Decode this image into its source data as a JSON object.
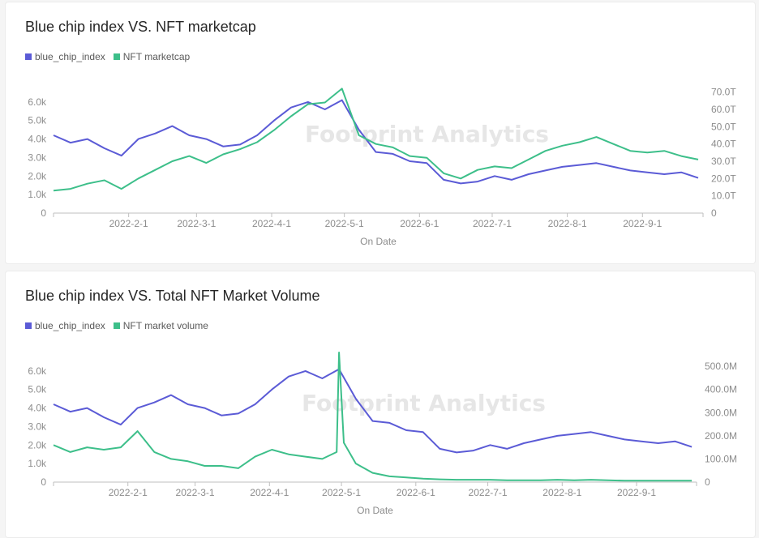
{
  "colors": {
    "blue": "#5b5bd6",
    "green": "#3dbf8a",
    "axis": "#8c8c8c",
    "watermark": "#e6e6e6"
  },
  "watermark": "Footprint Analytics",
  "chart_data": [
    {
      "type": "line",
      "title": "Blue chip index VS. NFT marketcap",
      "xlabel": "On Date",
      "x_tick_labels": [
        "2022-2-1",
        "2022-3-1",
        "2022-4-1",
        "2022-5-1",
        "2022-6-1",
        "2022-7-1",
        "2022-8-1",
        "2022-9-1"
      ],
      "x_range": [
        "2022-1-1",
        "2022-9-26"
      ],
      "y_left": {
        "ticks": [
          "0",
          "1.0k",
          "2.0k",
          "3.0k",
          "4.0k",
          "5.0k",
          "6.0k"
        ],
        "ylim": [
          0,
          7000
        ]
      },
      "y_right": {
        "ticks": [
          "0",
          "10.0T",
          "20.0T",
          "30.0T",
          "40.0T",
          "50.0T",
          "60.0T",
          "70.0T"
        ],
        "ylim": [
          0,
          75
        ]
      },
      "legend_position": "top-left",
      "series": [
        {
          "name": "blue_chip_index",
          "axis": "left",
          "x": [
            "2022-1-1",
            "2022-1-8",
            "2022-1-15",
            "2022-1-22",
            "2022-1-29",
            "2022-2-5",
            "2022-2-12",
            "2022-2-19",
            "2022-2-26",
            "2022-3-5",
            "2022-3-12",
            "2022-3-19",
            "2022-3-26",
            "2022-4-2",
            "2022-4-9",
            "2022-4-16",
            "2022-4-23",
            "2022-4-30",
            "2022-5-7",
            "2022-5-14",
            "2022-5-21",
            "2022-5-28",
            "2022-6-4",
            "2022-6-11",
            "2022-6-18",
            "2022-6-25",
            "2022-7-2",
            "2022-7-9",
            "2022-7-16",
            "2022-7-23",
            "2022-7-30",
            "2022-8-6",
            "2022-8-13",
            "2022-8-20",
            "2022-8-27",
            "2022-9-3",
            "2022-9-10",
            "2022-9-17",
            "2022-9-24"
          ],
          "values": [
            4200,
            3800,
            4000,
            3500,
            3100,
            4000,
            4300,
            4700,
            4200,
            4000,
            3600,
            3700,
            4200,
            5000,
            5700,
            6000,
            5600,
            6100,
            4500,
            3300,
            3200,
            2800,
            2700,
            1800,
            1600,
            1700,
            2000,
            1800,
            2100,
            2300,
            2500,
            2600,
            2700,
            2500,
            2300,
            2200,
            2100,
            2200,
            1900
          ]
        },
        {
          "name": "NFT marketcap",
          "axis": "right",
          "x": [
            "2022-1-1",
            "2022-1-8",
            "2022-1-15",
            "2022-1-22",
            "2022-1-29",
            "2022-2-5",
            "2022-2-12",
            "2022-2-19",
            "2022-2-26",
            "2022-3-5",
            "2022-3-12",
            "2022-3-19",
            "2022-3-26",
            "2022-4-2",
            "2022-4-9",
            "2022-4-16",
            "2022-4-23",
            "2022-4-30",
            "2022-5-7",
            "2022-5-14",
            "2022-5-21",
            "2022-5-28",
            "2022-6-4",
            "2022-6-11",
            "2022-6-18",
            "2022-6-25",
            "2022-7-2",
            "2022-7-9",
            "2022-7-16",
            "2022-7-23",
            "2022-7-30",
            "2022-8-6",
            "2022-8-13",
            "2022-8-20",
            "2022-8-27",
            "2022-9-3",
            "2022-9-10",
            "2022-9-17",
            "2022-9-24"
          ],
          "values": [
            13,
            14,
            17,
            19,
            14,
            20,
            25,
            30,
            33,
            29,
            34,
            37,
            41,
            48,
            56,
            63,
            64,
            72,
            45,
            40,
            38,
            33,
            32,
            23,
            20,
            25,
            27,
            26,
            31,
            36,
            39,
            41,
            44,
            40,
            36,
            35,
            36,
            33,
            31
          ]
        }
      ]
    },
    {
      "type": "line",
      "title": "Blue chip index VS. Total NFT Market Volume",
      "xlabel": "On Date",
      "x_tick_labels": [
        "2022-2-1",
        "2022-3-1",
        "2022-4-1",
        "2022-5-1",
        "2022-6-1",
        "2022-7-1",
        "2022-8-1",
        "2022-9-1"
      ],
      "x_range": [
        "2022-1-1",
        "2022-9-26"
      ],
      "y_left": {
        "ticks": [
          "0",
          "1.0k",
          "2.0k",
          "3.0k",
          "4.0k",
          "5.0k",
          "6.0k"
        ],
        "ylim": [
          0,
          7000
        ]
      },
      "y_right": {
        "ticks": [
          "0",
          "100.0M",
          "200.0M",
          "300.0M",
          "400.0M",
          "500.0M"
        ],
        "ylim": [
          0,
          560
        ]
      },
      "legend_position": "top-left",
      "series": [
        {
          "name": "blue_chip_index",
          "axis": "left",
          "x": [
            "2022-1-1",
            "2022-1-8",
            "2022-1-15",
            "2022-1-22",
            "2022-1-29",
            "2022-2-5",
            "2022-2-12",
            "2022-2-19",
            "2022-2-26",
            "2022-3-5",
            "2022-3-12",
            "2022-3-19",
            "2022-3-26",
            "2022-4-2",
            "2022-4-9",
            "2022-4-16",
            "2022-4-23",
            "2022-4-30",
            "2022-5-7",
            "2022-5-14",
            "2022-5-21",
            "2022-5-28",
            "2022-6-4",
            "2022-6-11",
            "2022-6-18",
            "2022-6-25",
            "2022-7-2",
            "2022-7-9",
            "2022-7-16",
            "2022-7-23",
            "2022-7-30",
            "2022-8-6",
            "2022-8-13",
            "2022-8-20",
            "2022-8-27",
            "2022-9-3",
            "2022-9-10",
            "2022-9-17",
            "2022-9-24"
          ],
          "values": [
            4200,
            3800,
            4000,
            3500,
            3100,
            4000,
            4300,
            4700,
            4200,
            4000,
            3600,
            3700,
            4200,
            5000,
            5700,
            6000,
            5600,
            6100,
            4500,
            3300,
            3200,
            2800,
            2700,
            1800,
            1600,
            1700,
            2000,
            1800,
            2100,
            2300,
            2500,
            2600,
            2700,
            2500,
            2300,
            2200,
            2100,
            2200,
            1900
          ]
        },
        {
          "name": "NFT market volume",
          "axis": "right",
          "x": [
            "2022-1-1",
            "2022-1-8",
            "2022-1-15",
            "2022-1-22",
            "2022-1-29",
            "2022-2-5",
            "2022-2-12",
            "2022-2-19",
            "2022-2-26",
            "2022-3-5",
            "2022-3-12",
            "2022-3-19",
            "2022-3-26",
            "2022-4-2",
            "2022-4-9",
            "2022-4-16",
            "2022-4-23",
            "2022-4-29",
            "2022-4-30",
            "2022-5-2",
            "2022-5-7",
            "2022-5-14",
            "2022-5-21",
            "2022-5-28",
            "2022-6-4",
            "2022-6-11",
            "2022-6-18",
            "2022-6-25",
            "2022-7-2",
            "2022-7-9",
            "2022-7-16",
            "2022-7-23",
            "2022-7-30",
            "2022-8-6",
            "2022-8-13",
            "2022-8-20",
            "2022-8-27",
            "2022-9-3",
            "2022-9-10",
            "2022-9-17",
            "2022-9-24"
          ],
          "values": [
            160,
            130,
            150,
            140,
            150,
            220,
            130,
            100,
            90,
            70,
            70,
            60,
            110,
            140,
            120,
            110,
            100,
            130,
            560,
            170,
            80,
            40,
            25,
            20,
            15,
            12,
            10,
            10,
            10,
            8,
            8,
            8,
            10,
            8,
            10,
            8,
            6,
            6,
            6,
            6,
            6
          ]
        }
      ]
    }
  ]
}
